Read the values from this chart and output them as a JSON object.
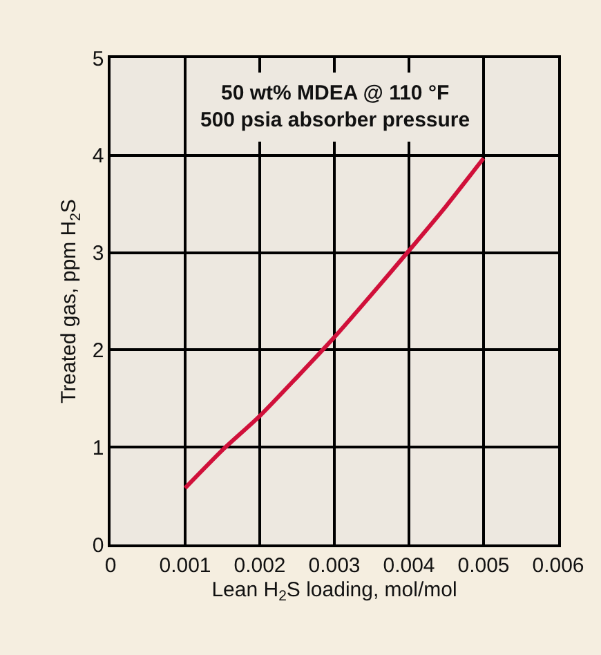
{
  "chart_data": {
    "type": "line",
    "xlabel": "Lean H$_{2}$S loading, mol/mol",
    "ylabel": "Treated gas, ppm H$_{2}$S",
    "annotations": [
      "50 wt% MDEA @ 110 °F\n500 psia absorber pressure"
    ],
    "x": [
      0.001,
      0.0015,
      0.002,
      0.0025,
      0.003,
      0.0035,
      0.004,
      0.0045,
      0.005
    ],
    "series": [
      {
        "color": "#d0103a",
        "values": [
          0.58,
          0.97,
          1.32,
          1.72,
          2.13,
          2.57,
          3.02,
          3.48,
          3.97
        ]
      }
    ],
    "xlim": [
      0,
      0.006
    ],
    "xticks": [
      0,
      0.001,
      0.002,
      0.003,
      0.004,
      0.005,
      0.006
    ],
    "ylim": [
      0,
      5
    ],
    "yticks": [
      0,
      1,
      2,
      3,
      4,
      5
    ],
    "grid": true,
    "marker": "none",
    "line_style": "solid"
  }
}
